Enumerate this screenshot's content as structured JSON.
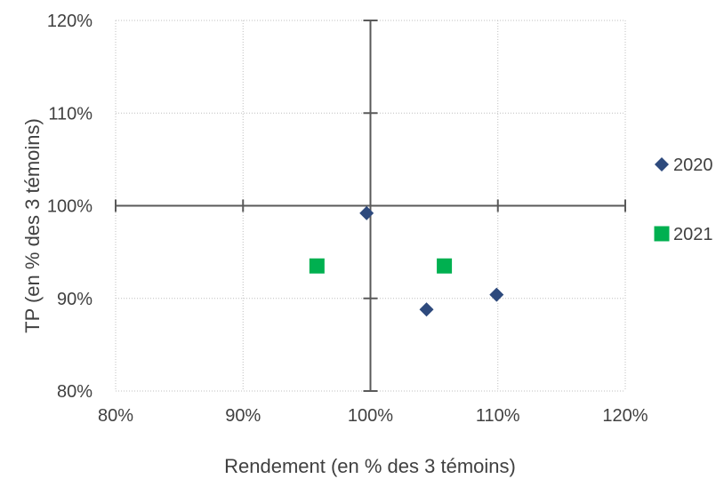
{
  "chart_data": {
    "type": "scatter",
    "title": "",
    "xlabel": "Rendement (en % des 3 témoins)",
    "ylabel": "TP (en % des 3 témoins)",
    "xlim": [
      80,
      120
    ],
    "ylim": [
      80,
      120
    ],
    "x_ticks": [
      80,
      90,
      100,
      110,
      120
    ],
    "y_ticks": [
      80,
      90,
      100,
      110,
      120
    ],
    "x_tick_labels": [
      "80%",
      "90%",
      "100%",
      "110%",
      "120%"
    ],
    "y_tick_labels": [
      "80%",
      "90%",
      "100%",
      "110%",
      "120%"
    ],
    "grid": true,
    "legend_position": "right",
    "series": [
      {
        "name": "2020",
        "marker": "diamond",
        "color": "#2E4A7D",
        "points": [
          {
            "x": 99.7,
            "y": 99.2
          },
          {
            "x": 104.4,
            "y": 88.8
          },
          {
            "x": 109.9,
            "y": 90.4
          }
        ]
      },
      {
        "name": "2021",
        "marker": "square",
        "color": "#00B050",
        "points": [
          {
            "x": 95.8,
            "y": 93.5
          },
          {
            "x": 105.8,
            "y": 93.5
          }
        ]
      }
    ]
  }
}
